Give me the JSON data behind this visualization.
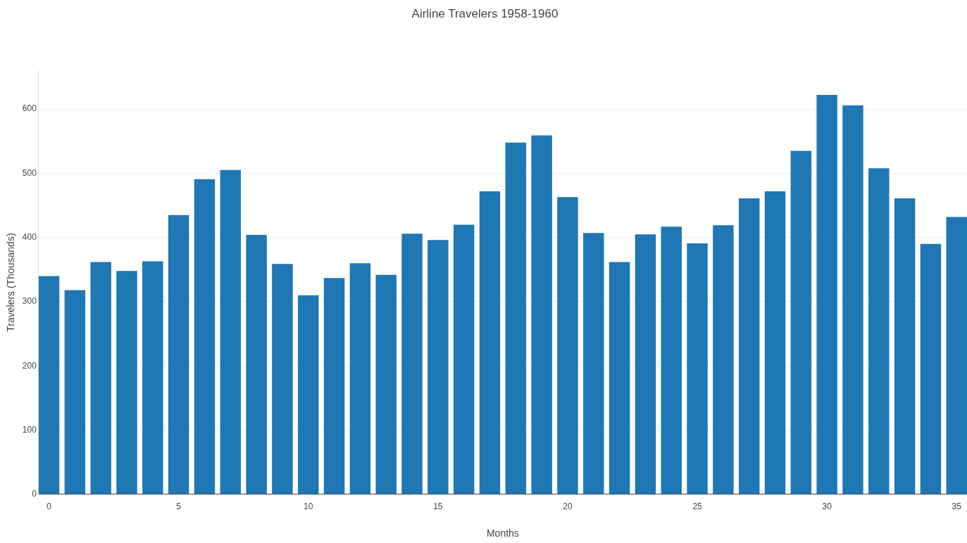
{
  "chart_data": {
    "type": "bar",
    "title": "Airline Travelers 1958-1960",
    "xlabel": "Months",
    "ylabel": "Travelers (Thousands)",
    "x": [
      0,
      1,
      2,
      3,
      4,
      5,
      6,
      7,
      8,
      9,
      10,
      11,
      12,
      13,
      14,
      15,
      16,
      17,
      18,
      19,
      20,
      21,
      22,
      23,
      24,
      25,
      26,
      27,
      28,
      29,
      30,
      31,
      32,
      33,
      34,
      35
    ],
    "values": [
      340,
      318,
      362,
      348,
      363,
      435,
      491,
      505,
      404,
      359,
      310,
      337,
      360,
      342,
      406,
      396,
      420,
      472,
      548,
      559,
      463,
      407,
      362,
      405,
      417,
      391,
      419,
      461,
      472,
      535,
      622,
      606,
      508,
      461,
      390,
      432
    ],
    "color": "#1f77b4",
    "xlim": [
      -0.4,
      35.4
    ],
    "xticks": [
      0,
      5,
      10,
      15,
      20,
      25,
      30,
      35
    ],
    "ylim": [
      0,
      660
    ],
    "yticks": [
      0,
      100,
      200,
      300,
      400,
      500,
      600
    ],
    "grid": "y",
    "legend": false
  }
}
